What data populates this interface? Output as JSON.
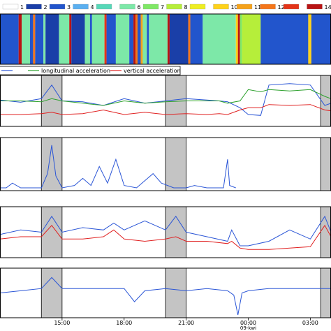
{
  "chart_data": [
    {
      "type": "heatmap",
      "legend": {
        "entries": [
          "1",
          "2",
          "3",
          "4",
          "5",
          "6",
          "7",
          "8",
          "9",
          "10",
          "11",
          "12",
          "13",
          "14"
        ],
        "visible_labels": [
          "1",
          "2",
          "3",
          "4",
          "",
          "6",
          "7",
          "8",
          "",
          "10",
          "11",
          "12",
          "",
          "14"
        ],
        "colors": [
          "#ffffff",
          "#1a3fa8",
          "#2255cc",
          "#5bb0f0",
          "#57d8b8",
          "#7de8a8",
          "#7fe866",
          "#b6ee3a",
          "#eeee22",
          "#ffd21a",
          "#f5a21a",
          "#f5761a",
          "#e43418",
          "#b81414"
        ],
        "placement": "top"
      },
      "x_range": [
        12.0,
        28.0
      ],
      "segments": [
        {
          "start": 12.0,
          "end": 12.9,
          "state": 3
        },
        {
          "start": 12.9,
          "end": 13.05,
          "state": 14
        },
        {
          "start": 13.05,
          "end": 13.45,
          "state": 6
        },
        {
          "start": 13.45,
          "end": 13.6,
          "state": 3
        },
        {
          "start": 13.6,
          "end": 13.7,
          "state": 12
        },
        {
          "start": 13.7,
          "end": 14.1,
          "state": 3
        },
        {
          "start": 14.1,
          "end": 14.2,
          "state": 6
        },
        {
          "start": 14.2,
          "end": 14.85,
          "state": 2
        },
        {
          "start": 14.85,
          "end": 15.35,
          "state": 6
        },
        {
          "start": 15.35,
          "end": 15.45,
          "state": 14
        },
        {
          "start": 15.45,
          "end": 16.1,
          "state": 2
        },
        {
          "start": 16.1,
          "end": 16.35,
          "state": 6
        },
        {
          "start": 16.35,
          "end": 16.45,
          "state": 3
        },
        {
          "start": 16.45,
          "end": 17.05,
          "state": 6
        },
        {
          "start": 17.05,
          "end": 17.15,
          "state": 13
        },
        {
          "start": 17.15,
          "end": 17.6,
          "state": 3
        },
        {
          "start": 17.6,
          "end": 18.25,
          "state": 6
        },
        {
          "start": 18.25,
          "end": 18.45,
          "state": 3
        },
        {
          "start": 18.45,
          "end": 18.55,
          "state": 14
        },
        {
          "start": 18.55,
          "end": 18.65,
          "state": 12
        },
        {
          "start": 18.65,
          "end": 18.8,
          "state": 3
        },
        {
          "start": 18.8,
          "end": 18.9,
          "state": 11
        },
        {
          "start": 18.9,
          "end": 19.1,
          "state": 6
        },
        {
          "start": 19.1,
          "end": 19.2,
          "state": 3
        },
        {
          "start": 19.2,
          "end": 20.1,
          "state": 6
        },
        {
          "start": 20.1,
          "end": 20.2,
          "state": 14
        },
        {
          "start": 20.2,
          "end": 21.1,
          "state": 2
        },
        {
          "start": 21.1,
          "end": 21.2,
          "state": 12
        },
        {
          "start": 21.2,
          "end": 21.8,
          "state": 3
        },
        {
          "start": 21.8,
          "end": 23.4,
          "state": 6
        },
        {
          "start": 23.4,
          "end": 23.5,
          "state": 10
        },
        {
          "start": 23.5,
          "end": 23.6,
          "state": 14
        },
        {
          "start": 23.6,
          "end": 23.7,
          "state": 7
        },
        {
          "start": 23.7,
          "end": 24.6,
          "state": 8
        },
        {
          "start": 24.6,
          "end": 26.9,
          "state": 3
        },
        {
          "start": 26.9,
          "end": 27.05,
          "state": 10
        },
        {
          "start": 27.05,
          "end": 28.0,
          "state": 3
        }
      ]
    },
    {
      "type": "line",
      "x_range": [
        12.0,
        28.0
      ],
      "legend": {
        "placement": "top-left"
      },
      "series": [
        {
          "name": "",
          "color": "#2a55d6",
          "x": [
            12.0,
            13.0,
            14.0,
            14.5,
            15.0,
            16.0,
            17.0,
            18.0,
            19.0,
            20.0,
            21.0,
            22.0,
            22.6,
            23.0,
            23.6,
            24.0,
            24.6,
            25.0,
            26.0,
            27.0,
            27.7,
            28.0
          ],
          "y": [
            0.52,
            0.47,
            0.55,
            0.85,
            0.5,
            0.48,
            0.4,
            0.55,
            0.45,
            0.5,
            0.55,
            0.52,
            0.5,
            0.48,
            0.35,
            0.2,
            0.18,
            0.85,
            0.88,
            0.85,
            0.4,
            0.45
          ]
        },
        {
          "name": "longitudinal acceleration",
          "color": "#2ca02c",
          "x": [
            12.0,
            13.0,
            14.0,
            14.5,
            15.0,
            16.0,
            17.0,
            18.0,
            19.0,
            20.0,
            21.0,
            22.0,
            22.6,
            23.0,
            23.6,
            24.0,
            24.6,
            25.0,
            26.0,
            27.0,
            27.7,
            28.0
          ],
          "y": [
            0.5,
            0.5,
            0.48,
            0.55,
            0.5,
            0.45,
            0.4,
            0.5,
            0.45,
            0.48,
            0.5,
            0.5,
            0.5,
            0.45,
            0.5,
            0.75,
            0.7,
            0.75,
            0.72,
            0.75,
            0.6,
            0.55
          ]
        },
        {
          "name": "vertical acceleration",
          "color": "#e02020",
          "x": [
            12.0,
            13.0,
            14.0,
            14.5,
            15.0,
            16.0,
            17.0,
            18.0,
            19.0,
            20.0,
            21.0,
            22.0,
            22.6,
            23.0,
            23.6,
            24.0,
            24.6,
            25.0,
            26.0,
            27.0,
            27.7,
            28.0
          ],
          "y": [
            0.2,
            0.2,
            0.22,
            0.25,
            0.2,
            0.22,
            0.3,
            0.2,
            0.25,
            0.2,
            0.22,
            0.2,
            0.22,
            0.2,
            0.3,
            0.35,
            0.35,
            0.42,
            0.4,
            0.42,
            0.3,
            0.28
          ]
        }
      ]
    },
    {
      "type": "line",
      "x_range": [
        12.0,
        28.0
      ],
      "series": [
        {
          "name": "",
          "color": "#2a55d6",
          "x": [
            12.0,
            12.3,
            12.6,
            13.0,
            14.0,
            14.3,
            14.5,
            14.7,
            15.0,
            15.6,
            16.0,
            16.4,
            16.8,
            17.2,
            17.6,
            18.0,
            18.6,
            19.0,
            19.4,
            19.8,
            20.4,
            21.0,
            21.4,
            22.0,
            22.4,
            22.8,
            23.0,
            23.1,
            23.4
          ],
          "y": [
            0.0,
            0.0,
            0.1,
            0.0,
            0.0,
            0.3,
            0.9,
            0.25,
            0.0,
            0.05,
            0.2,
            0.05,
            0.45,
            0.1,
            0.6,
            0.05,
            0.0,
            0.15,
            0.3,
            0.1,
            0.0,
            0.0,
            0.05,
            0.0,
            0.0,
            0.0,
            0.6,
            0.05,
            0.0
          ]
        }
      ]
    },
    {
      "type": "line",
      "x_range": [
        12.0,
        28.0
      ],
      "series": [
        {
          "name": "",
          "color": "#2a55d6",
          "x": [
            12.0,
            13.0,
            14.0,
            14.5,
            15.0,
            16.0,
            17.0,
            17.5,
            18.0,
            19.0,
            20.0,
            20.5,
            21.0,
            22.0,
            23.0,
            23.2,
            23.6,
            24.0,
            25.0,
            26.0,
            27.0,
            27.7,
            28.0
          ],
          "y": [
            0.45,
            0.55,
            0.5,
            0.85,
            0.5,
            0.6,
            0.55,
            0.7,
            0.55,
            0.75,
            0.55,
            0.85,
            0.5,
            0.4,
            0.3,
            0.55,
            0.2,
            0.2,
            0.3,
            0.55,
            0.35,
            0.85,
            0.5
          ]
        },
        {
          "name": "",
          "color": "#e02020",
          "x": [
            12.0,
            13.0,
            14.0,
            14.5,
            15.0,
            16.0,
            17.0,
            17.5,
            18.0,
            19.0,
            20.0,
            20.5,
            21.0,
            22.0,
            23.0,
            23.2,
            23.6,
            24.0,
            25.0,
            26.0,
            27.0,
            27.7,
            28.0
          ],
          "y": [
            0.35,
            0.4,
            0.4,
            0.65,
            0.35,
            0.35,
            0.4,
            0.55,
            0.35,
            0.3,
            0.35,
            0.4,
            0.3,
            0.3,
            0.25,
            0.3,
            0.15,
            0.12,
            0.12,
            0.15,
            0.18,
            0.65,
            0.4
          ]
        }
      ]
    },
    {
      "type": "line",
      "x_range": [
        12.0,
        28.0
      ],
      "series": [
        {
          "name": "",
          "color": "#2a55d6",
          "x": [
            12.0,
            13.0,
            14.0,
            14.5,
            15.0,
            16.0,
            17.0,
            18.0,
            18.5,
            19.0,
            20.0,
            21.0,
            22.0,
            23.0,
            23.3,
            23.5,
            23.7,
            24.0,
            25.0,
            26.0,
            27.0,
            28.0
          ],
          "y": [
            0.5,
            0.55,
            0.6,
            0.85,
            0.6,
            0.6,
            0.6,
            0.6,
            0.3,
            0.55,
            0.6,
            0.55,
            0.6,
            0.55,
            0.45,
            0.0,
            0.5,
            0.55,
            0.6,
            0.6,
            0.6,
            0.6
          ]
        }
      ]
    }
  ],
  "x_axis": {
    "ticks": [
      {
        "value": 15,
        "label": "15:00"
      },
      {
        "value": 18,
        "label": "18:00"
      },
      {
        "value": 21,
        "label": "21:00"
      },
      {
        "value": 24,
        "label": "00:00"
      },
      {
        "value": 27,
        "label": "03:00"
      }
    ],
    "date_label": "09-kwi",
    "date_position": 24
  },
  "shaded_regions": [
    {
      "start": 14.0,
      "end": 15.0
    },
    {
      "start": 20.0,
      "end": 21.0
    },
    {
      "start": 27.5,
      "end": 28.0
    }
  ],
  "shade_color": "#c4c4c4"
}
